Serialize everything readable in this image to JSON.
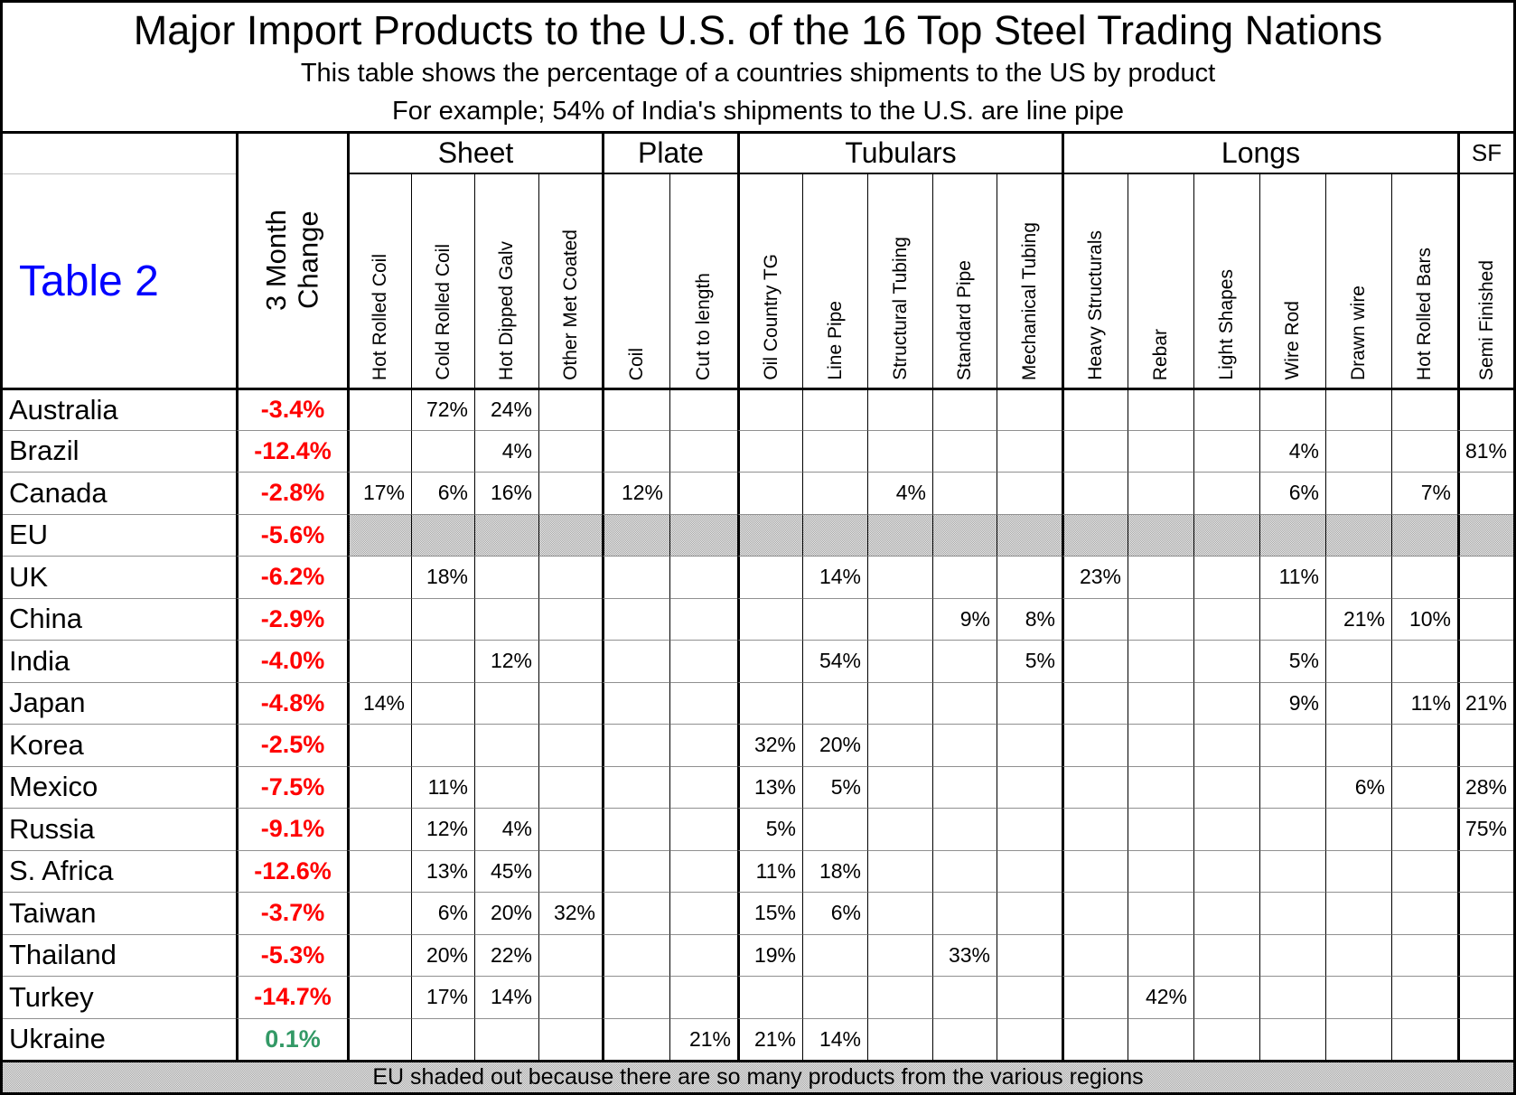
{
  "header": {
    "title": "Major Import Products to the U.S. of the 16 Top Steel Trading Nations",
    "subtitle1": "This table shows the percentage of a countries shipments to the US by product",
    "subtitle2": "For example; 54% of India's shipments to the U.S. are line pipe"
  },
  "table_label": "Table 2",
  "change_column": {
    "label_lines": [
      "3 Month",
      "Change"
    ]
  },
  "footer_note": "EU shaded out because there are so many products from the various regions",
  "colors": {
    "negative_change": "#FF0000",
    "positive_change": "#339966",
    "table_label": "#0000FF",
    "shading_gray": "#CCCCCC"
  },
  "chart_data": {
    "type": "table",
    "column_groups": [
      {
        "label": "Sheet",
        "cols": 4
      },
      {
        "label": "Plate",
        "cols": 2
      },
      {
        "label": "Tubulars",
        "cols": 5
      },
      {
        "label": "Longs",
        "cols": 6
      },
      {
        "label": "SF",
        "cols": 1
      }
    ],
    "columns": [
      "Hot Rolled Coil",
      "Cold Rolled Coil",
      "Hot Dipped Galv",
      "Other Met Coated",
      "Coil",
      "Cut to length",
      "Oil Country TG",
      "Line Pipe",
      "Structural Tubing",
      "Standard Pipe",
      "Mechanical Tubing",
      "Heavy Structurals",
      "Rebar",
      "Light Shapes",
      "Wire Rod",
      "Drawn wire",
      "Hot Rolled Bars",
      "Semi Finished"
    ],
    "rows": [
      {
        "country": "Australia",
        "change": "-3.4%",
        "shaded": false,
        "values": [
          "",
          "72%",
          "24%",
          "",
          "",
          "",
          "",
          "",
          "",
          "",
          "",
          "",
          "",
          "",
          "",
          "",
          "",
          ""
        ]
      },
      {
        "country": "Brazil",
        "change": "-12.4%",
        "shaded": false,
        "values": [
          "",
          "",
          "4%",
          "",
          "",
          "",
          "",
          "",
          "",
          "",
          "",
          "",
          "",
          "",
          "4%",
          "",
          "",
          "81%"
        ]
      },
      {
        "country": "Canada",
        "change": "-2.8%",
        "shaded": false,
        "values": [
          "17%",
          "6%",
          "16%",
          "",
          "12%",
          "",
          "",
          "",
          "4%",
          "",
          "",
          "",
          "",
          "",
          "6%",
          "",
          "7%",
          ""
        ]
      },
      {
        "country": "EU",
        "change": "-5.6%",
        "shaded": true,
        "values": [
          "",
          "",
          "",
          "",
          "",
          "",
          "",
          "",
          "",
          "",
          "",
          "",
          "",
          "",
          "",
          "",
          "",
          ""
        ]
      },
      {
        "country": "UK",
        "change": "-6.2%",
        "shaded": false,
        "values": [
          "",
          "18%",
          "",
          "",
          "",
          "",
          "",
          "14%",
          "",
          "",
          "",
          "23%",
          "",
          "",
          "11%",
          "",
          "",
          ""
        ]
      },
      {
        "country": "China",
        "change": "-2.9%",
        "shaded": false,
        "values": [
          "",
          "",
          "",
          "",
          "",
          "",
          "",
          "",
          "",
          "9%",
          "8%",
          "",
          "",
          "",
          "",
          "21%",
          "10%",
          ""
        ]
      },
      {
        "country": "India",
        "change": "-4.0%",
        "shaded": false,
        "values": [
          "",
          "",
          "12%",
          "",
          "",
          "",
          "",
          "54%",
          "",
          "",
          "5%",
          "",
          "",
          "",
          "5%",
          "",
          "",
          ""
        ]
      },
      {
        "country": "Japan",
        "change": "-4.8%",
        "shaded": false,
        "values": [
          "14%",
          "",
          "",
          "",
          "",
          "",
          "",
          "",
          "",
          "",
          "",
          "",
          "",
          "",
          "9%",
          "",
          "11%",
          "21%"
        ]
      },
      {
        "country": "Korea",
        "change": "-2.5%",
        "shaded": false,
        "values": [
          "",
          "",
          "",
          "",
          "",
          "",
          "32%",
          "20%",
          "",
          "",
          "",
          "",
          "",
          "",
          "",
          "",
          "",
          ""
        ]
      },
      {
        "country": "Mexico",
        "change": "-7.5%",
        "shaded": false,
        "values": [
          "",
          "11%",
          "",
          "",
          "",
          "",
          "13%",
          "5%",
          "",
          "",
          "",
          "",
          "",
          "",
          "",
          "6%",
          "",
          "28%"
        ]
      },
      {
        "country": "Russia",
        "change": "-9.1%",
        "shaded": false,
        "values": [
          "",
          "12%",
          "4%",
          "",
          "",
          "",
          "5%",
          "",
          "",
          "",
          "",
          "",
          "",
          "",
          "",
          "",
          "",
          "75%"
        ]
      },
      {
        "country": "S. Africa",
        "change": "-12.6%",
        "shaded": false,
        "values": [
          "",
          "13%",
          "45%",
          "",
          "",
          "",
          "11%",
          "18%",
          "",
          "",
          "",
          "",
          "",
          "",
          "",
          "",
          "",
          ""
        ]
      },
      {
        "country": "Taiwan",
        "change": "-3.7%",
        "shaded": false,
        "values": [
          "",
          "6%",
          "20%",
          "32%",
          "",
          "",
          "15%",
          "6%",
          "",
          "",
          "",
          "",
          "",
          "",
          "",
          "",
          "",
          ""
        ]
      },
      {
        "country": "Thailand",
        "change": "-5.3%",
        "shaded": false,
        "values": [
          "",
          "20%",
          "22%",
          "",
          "",
          "",
          "19%",
          "",
          "",
          "33%",
          "",
          "",
          "",
          "",
          "",
          "",
          "",
          ""
        ]
      },
      {
        "country": "Turkey",
        "change": "-14.7%",
        "shaded": false,
        "values": [
          "",
          "17%",
          "14%",
          "",
          "",
          "",
          "",
          "",
          "",
          "",
          "",
          "",
          "42%",
          "",
          "",
          "",
          "",
          ""
        ]
      },
      {
        "country": "Ukraine",
        "change": "0.1%",
        "shaded": false,
        "values": [
          "",
          "",
          "",
          "",
          "",
          "21%",
          "21%",
          "14%",
          "",
          "",
          "",
          "",
          "",
          "",
          "",
          "",
          "",
          ""
        ]
      }
    ]
  }
}
